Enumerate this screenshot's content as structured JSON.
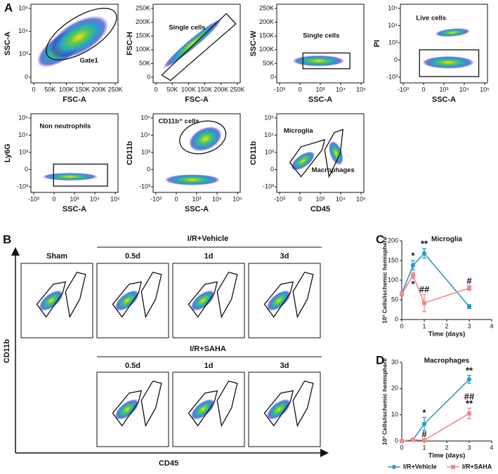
{
  "panel_labels": {
    "a": "A",
    "b": "B",
    "c": "C",
    "d": "D"
  },
  "flow_plots": [
    {
      "x_label": "FSC-A",
      "y_label": "SSC-A",
      "gate_labels": [
        "Gate1"
      ],
      "x_ticks": [
        "0",
        "50K",
        "100K",
        "150K",
        "200K",
        "250K"
      ],
      "y_ticks": [
        "10⁵",
        "10⁴",
        "10³",
        "0"
      ]
    },
    {
      "x_label": "FSC-A",
      "y_label": "FSC-H",
      "gate_labels": [
        "Single cells"
      ],
      "x_ticks": [
        "0",
        "50K",
        "100K",
        "150K",
        "200K",
        "250K"
      ],
      "y_ticks": [
        "250K",
        "200K",
        "150K",
        "100K",
        "50K",
        "0"
      ]
    },
    {
      "x_label": "SSC-A",
      "y_label": "SSC-W",
      "gate_labels": [
        "Single cells"
      ],
      "x_ticks": [
        "-10³",
        "0",
        "10³",
        "10⁴",
        "10⁵"
      ],
      "y_ticks": [
        "250K",
        "200K",
        "150K",
        "100K",
        "50K",
        "0"
      ]
    },
    {
      "x_label": "SSC-A",
      "y_label": "PI",
      "gate_labels": [
        "Live cells"
      ],
      "x_ticks": [
        "-10³",
        "0",
        "10³",
        "10⁴",
        "10⁵"
      ],
      "y_ticks": [
        "10⁵",
        "10⁴",
        "10³",
        "0",
        "-10³"
      ]
    },
    {
      "x_label": "SSC-A",
      "y_label": "Ly6G",
      "gate_labels": [
        "Non neutrophils"
      ],
      "x_ticks": [
        "-10³",
        "0",
        "10³",
        "10⁴",
        "10⁵"
      ],
      "y_ticks": [
        "10⁵",
        "10⁴",
        "10³",
        "0",
        "-10³"
      ]
    },
    {
      "x_label": "SSC-A",
      "y_label": "CD11b",
      "gate_labels": [
        "CD11b⁺ cells"
      ],
      "x_ticks": [
        "-10³",
        "0",
        "10³",
        "10⁴",
        "10⁵"
      ],
      "y_ticks": [
        "10⁵",
        "10⁴",
        "10³",
        "0",
        "-10³"
      ]
    },
    {
      "x_label": "CD45",
      "y_label": "CD11b",
      "gate_labels": [
        "Microglia",
        "Macrophages"
      ],
      "x_ticks": [
        "-10³",
        "0",
        "10³",
        "10⁴",
        "10⁵"
      ],
      "y_ticks": [
        "10⁵",
        "10⁴",
        "10³",
        "0",
        "-10³"
      ]
    }
  ],
  "panel_b": {
    "sham": "Sham",
    "groups": [
      {
        "title": "I/R+Vehicle",
        "columns": [
          "0.5d",
          "1d",
          "3d"
        ]
      },
      {
        "title": "I/R+SAHA",
        "columns": [
          "0.5d",
          "1d",
          "3d"
        ]
      }
    ],
    "y_label": "CD11b",
    "x_label": "CD45"
  },
  "chart_data": [
    {
      "type": "line",
      "title": "Microglia",
      "x_label": "Time (days)",
      "y_label": "10³ Cells/ischemic hemisphere",
      "x": [
        0,
        0.5,
        1,
        3
      ],
      "xlim": [
        0,
        4
      ],
      "xticks": [
        0,
        1,
        2,
        3,
        4
      ],
      "ylim": [
        0,
        200
      ],
      "yticks": [
        0,
        50,
        100,
        150,
        200
      ],
      "series": [
        {
          "name": "I/R+Vehicle",
          "color": "#2b9cbf",
          "values": [
            65,
            138,
            168,
            33
          ],
          "errors": [
            5,
            12,
            12,
            5
          ],
          "annotations": [
            null,
            "*",
            "**",
            null
          ]
        },
        {
          "name": "I/R+SAHA",
          "color": "#ef8a8a",
          "values": [
            65,
            112,
            42,
            80
          ],
          "errors": [
            5,
            8,
            22,
            6
          ],
          "annotations": [
            null,
            "*",
            "##",
            "#"
          ]
        }
      ]
    },
    {
      "type": "line",
      "title": "Macrophages",
      "x_label": "Time (days)",
      "y_label": "10³ Cells/ischemic hemisphere",
      "x": [
        0,
        0.5,
        1,
        3
      ],
      "xlim": [
        0,
        4
      ],
      "xticks": [
        0,
        1,
        2,
        3,
        4
      ],
      "ylim": [
        0,
        30
      ],
      "yticks": [
        0,
        10,
        20,
        30
      ],
      "series": [
        {
          "name": "I/R+Vehicle",
          "color": "#2b9cbf",
          "values": [
            0,
            0.5,
            6.5,
            23.5
          ],
          "errors": [
            0,
            0.3,
            2.5,
            1.5
          ],
          "annotations": [
            null,
            null,
            "*",
            "**"
          ]
        },
        {
          "name": "I/R+SAHA",
          "color": "#ef8a8a",
          "values": [
            0,
            0.5,
            0.3,
            10.5
          ],
          "errors": [
            0,
            0.2,
            0.3,
            2
          ],
          "annotations": [
            null,
            null,
            "#",
            [
              "##",
              "**"
            ]
          ]
        }
      ]
    }
  ]
}
